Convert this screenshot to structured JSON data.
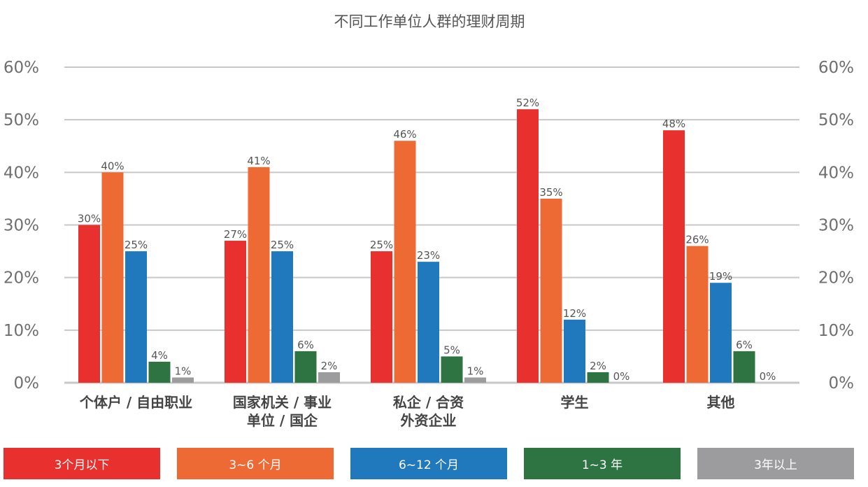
{
  "chart_data": {
    "type": "bar",
    "title": "不同工作单位人群的理财周期",
    "categories": [
      [
        "个体户 / 自由职业"
      ],
      [
        "国家机关 / 事业",
        "单位 / 国企"
      ],
      [
        "私企 / 合资",
        "外资企业"
      ],
      [
        "学生"
      ],
      [
        "其他"
      ]
    ],
    "series": [
      {
        "name": "3个月以下",
        "color": "#e8302e",
        "values": [
          30,
          27,
          25,
          52,
          48
        ],
        "labels": [
          "30%",
          "27%",
          "25%",
          "52%",
          "48%"
        ]
      },
      {
        "name": "3~6 个月",
        "color": "#ee6a34",
        "values": [
          40,
          41,
          46,
          35,
          26
        ],
        "labels": [
          "40%",
          "41%",
          "46%",
          "35%",
          "26%"
        ]
      },
      {
        "name": "6~12 个月",
        "color": "#2179bd",
        "values": [
          25,
          25,
          23,
          12,
          19
        ],
        "labels": [
          "25%",
          "25%",
          "23%",
          "12%",
          "19%"
        ]
      },
      {
        "name": "1~3 年",
        "color": "#2e7342",
        "values": [
          4,
          6,
          5,
          2,
          6
        ],
        "labels": [
          "4%",
          "6%",
          "5%",
          "2%",
          "6%"
        ]
      },
      {
        "name": "3年以上",
        "color": "#9c9c9e",
        "values": [
          1,
          2,
          1,
          0,
          0
        ],
        "labels": [
          "1%",
          "2%",
          "1%",
          "0%",
          "0%"
        ]
      }
    ],
    "yticks": [
      "0%",
      "10%",
      "20%",
      "30%",
      "40%",
      "50%",
      "60%"
    ],
    "ylim": [
      0,
      60
    ],
    "grid": true,
    "axis_color": "#c8c8c8",
    "legend_position": "bottom"
  }
}
